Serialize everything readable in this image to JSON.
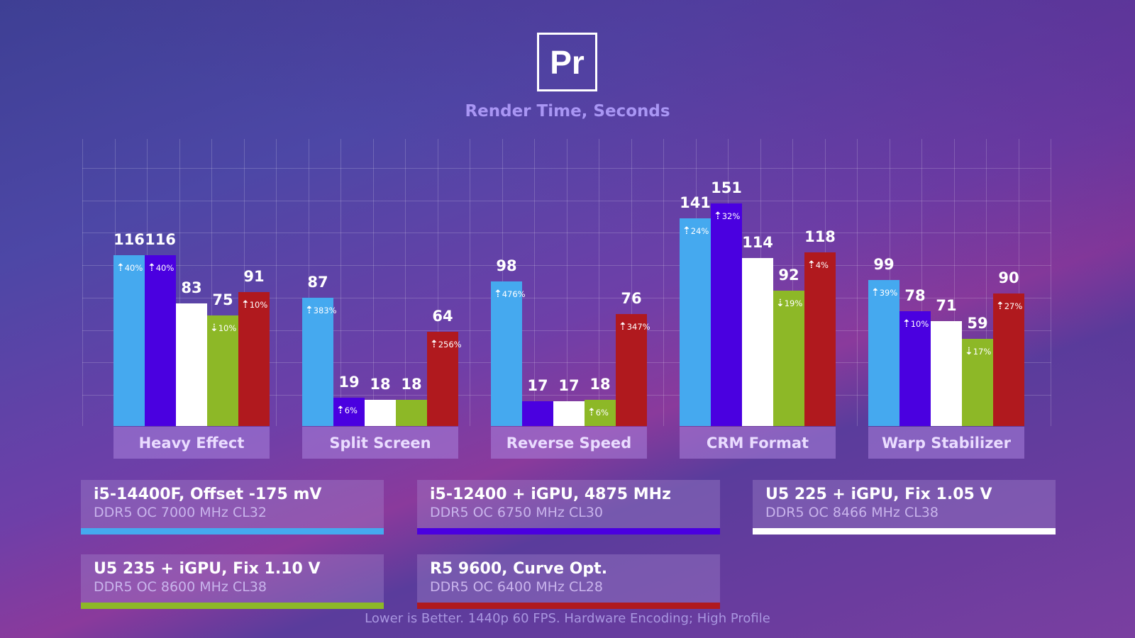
{
  "logo": "Pr",
  "chart_data": {
    "type": "bar",
    "title": "Render Time, Seconds",
    "footer": "Lower is Better. 1440p 60 FPS. Hardware Encoding; High Profile",
    "categories": [
      "Heavy Effect",
      "Split Screen",
      "Reverse Speed",
      "CRM Format",
      "Warp Stabilizer"
    ],
    "series": [
      {
        "name": "i5-14400F, Offset -175 mV",
        "memory": "DDR5 OC 7000 MHz CL32",
        "color": "#45a9ef",
        "values": [
          116,
          87,
          98,
          141,
          99
        ],
        "deltas": [
          "40%",
          "383%",
          "476%",
          "24%",
          "39%"
        ],
        "dirs": [
          "up",
          "up",
          "up",
          "up",
          "up"
        ]
      },
      {
        "name": "i5-12400 + iGPU, 4875 MHz",
        "memory": "DDR5 OC 6750 MHz CL30",
        "color": "#4a00e0",
        "values": [
          116,
          19,
          17,
          151,
          78
        ],
        "deltas": [
          "40%",
          "6%",
          null,
          "32%",
          "10%"
        ],
        "dirs": [
          "up",
          "up",
          null,
          "up",
          "up"
        ]
      },
      {
        "name": "U5 225 + iGPU, Fix 1.05 V",
        "memory": "DDR5 OC 8466 MHz CL38",
        "color": "#ffffff",
        "values": [
          83,
          18,
          17,
          114,
          71
        ],
        "deltas": [
          null,
          null,
          null,
          null,
          null
        ],
        "dirs": [
          null,
          null,
          null,
          null,
          null
        ]
      },
      {
        "name": "U5 235 + iGPU, Fix 1.10 V",
        "memory": "DDR5 OC 8600 MHz CL38",
        "color": "#8db827",
        "values": [
          75,
          18,
          18,
          92,
          59
        ],
        "deltas": [
          "10%",
          null,
          "6%",
          "19%",
          "17%"
        ],
        "dirs": [
          "down",
          null,
          "up",
          "down",
          "down"
        ]
      },
      {
        "name": "R5 9600, Curve Opt.",
        "memory": "DDR5 OC 6400 MHz CL28",
        "color": "#b0191e",
        "values": [
          91,
          64,
          76,
          118,
          90
        ],
        "deltas": [
          "10%",
          "256%",
          "347%",
          "4%",
          "27%"
        ],
        "dirs": [
          "up",
          "up",
          "up",
          "up",
          "up"
        ]
      }
    ],
    "ylim": [
      0,
      170
    ],
    "grid": true,
    "legend": "bottom"
  }
}
